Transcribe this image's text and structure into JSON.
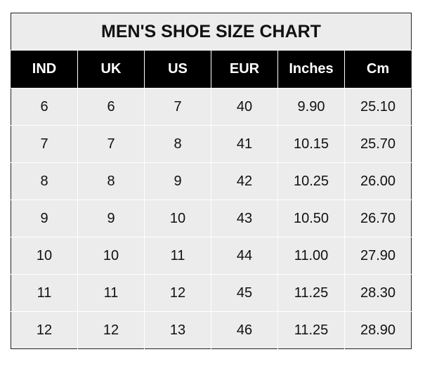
{
  "chart_data": {
    "type": "table",
    "title": "MEN'S SHOE SIZE CHART",
    "columns": [
      "IND",
      "UK",
      "US",
      "EUR",
      "Inches",
      "Cm"
    ],
    "rows": [
      [
        "6",
        "6",
        "7",
        "40",
        "9.90",
        "25.10"
      ],
      [
        "7",
        "7",
        "8",
        "41",
        "10.15",
        "25.70"
      ],
      [
        "8",
        "8",
        "9",
        "42",
        "10.25",
        "26.00"
      ],
      [
        "9",
        "9",
        "10",
        "43",
        "10.50",
        "26.70"
      ],
      [
        "10",
        "10",
        "11",
        "44",
        "11.00",
        "27.90"
      ],
      [
        "11",
        "11",
        "12",
        "45",
        "11.25",
        "28.30"
      ],
      [
        "12",
        "12",
        "13",
        "46",
        "11.25",
        "28.90"
      ]
    ],
    "colors": {
      "header_bg": "#000000",
      "header_text": "#ffffff",
      "cell_bg": "#ececec"
    }
  }
}
